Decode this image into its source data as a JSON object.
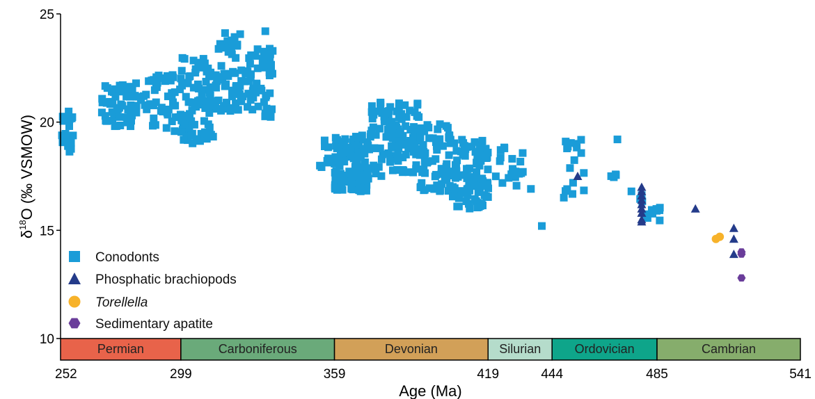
{
  "chart_data": {
    "type": "scatter",
    "title": "",
    "xlabel": "Age (Ma)",
    "ylabel": "δ18O (‰ VSMOW)",
    "xlim": [
      252,
      541
    ],
    "ylim": [
      10,
      25
    ],
    "x_ticks": [
      252,
      299,
      359,
      419,
      444,
      485,
      541
    ],
    "y_ticks": [
      10,
      15,
      20,
      25
    ],
    "grid": false,
    "legend_position": "bottom-left",
    "periods": [
      {
        "name": "Permian",
        "start": 252,
        "end": 299,
        "color": "#e8634a"
      },
      {
        "name": "Carboniferous",
        "start": 299,
        "end": 359,
        "color": "#6aaa7a"
      },
      {
        "name": "Devonian",
        "start": 359,
        "end": 419,
        "color": "#d2a058"
      },
      {
        "name": "Silurian",
        "start": 419,
        "end": 444,
        "color": "#b5dccb"
      },
      {
        "name": "Ordovician",
        "start": 444,
        "end": 485,
        "color": "#0ea58a"
      },
      {
        "name": "Cambrian",
        "start": 485,
        "end": 541,
        "color": "#86ad6c"
      }
    ],
    "series": [
      {
        "name": "Conodonts",
        "marker": "square",
        "color": "#1a9cd8",
        "clusters": [
          {
            "x": [
              252,
              257
            ],
            "y": [
              18.4,
              20.5
            ],
            "n": 24
          },
          {
            "x": [
              268,
              285
            ],
            "y": [
              19.8,
              21.8
            ],
            "n": 60
          },
          {
            "x": [
              285,
              300
            ],
            "y": [
              19.5,
              22.2
            ],
            "n": 45
          },
          {
            "x": [
              299,
              313
            ],
            "y": [
              19.0,
              23.0
            ],
            "n": 90
          },
          {
            "x": [
              313,
              323
            ],
            "y": [
              20.5,
              24.2
            ],
            "n": 50
          },
          {
            "x": [
              323,
              335
            ],
            "y": [
              20.2,
              23.4
            ],
            "n": 60
          },
          {
            "x": [
              353,
              357
            ],
            "y": [
              17.8,
              19.2
            ],
            "n": 8
          },
          {
            "x": [
              359,
              373
            ],
            "y": [
              16.8,
              19.5
            ],
            "n": 110
          },
          {
            "x": [
              373,
              392
            ],
            "y": [
              17.5,
              21.0
            ],
            "n": 110
          },
          {
            "x": [
              392,
              405
            ],
            "y": [
              16.8,
              20.0
            ],
            "n": 70
          },
          {
            "x": [
              405,
              419
            ],
            "y": [
              16.0,
              19.2
            ],
            "n": 100
          },
          {
            "x": [
              419,
              436
            ],
            "y": [
              16.9,
              19.0
            ],
            "n": 22
          },
          {
            "x": [
              446,
              470
            ],
            "y": [
              16.5,
              19.6
            ],
            "n": 22
          },
          {
            "x": [
              478,
              487
            ],
            "y": [
              15.4,
              16.8
            ],
            "n": 12
          }
        ],
        "values": [
          {
            "x": 332,
            "y": 24.2
          },
          {
            "x": 440,
            "y": 15.2
          },
          {
            "x": 475,
            "y": 16.8
          }
        ]
      },
      {
        "name": "Phosphatic brachiopods",
        "marker": "triangle",
        "color": "#243b8a",
        "values": [
          {
            "x": 454,
            "y": 17.5
          },
          {
            "x": 479,
            "y": 17.0
          },
          {
            "x": 479,
            "y": 16.8
          },
          {
            "x": 479,
            "y": 16.6
          },
          {
            "x": 479,
            "y": 16.4
          },
          {
            "x": 479,
            "y": 16.2
          },
          {
            "x": 479,
            "y": 16.0
          },
          {
            "x": 479,
            "y": 15.8
          },
          {
            "x": 479,
            "y": 15.5
          },
          {
            "x": 479,
            "y": 15.4
          },
          {
            "x": 500,
            "y": 16.0
          },
          {
            "x": 515,
            "y": 15.1
          },
          {
            "x": 515,
            "y": 14.6
          },
          {
            "x": 515,
            "y": 13.9
          }
        ]
      },
      {
        "name": "Torellella",
        "marker": "circle",
        "color": "#f7b22a",
        "values": [
          {
            "x": 508,
            "y": 14.6
          },
          {
            "x": 509.5,
            "y": 14.7
          }
        ]
      },
      {
        "name": "Sedimentary apatite",
        "marker": "hexagon",
        "color": "#6a3d9a",
        "values": [
          {
            "x": 518,
            "y": 14.0
          },
          {
            "x": 518,
            "y": 13.9
          },
          {
            "x": 518,
            "y": 12.8
          }
        ]
      }
    ]
  }
}
